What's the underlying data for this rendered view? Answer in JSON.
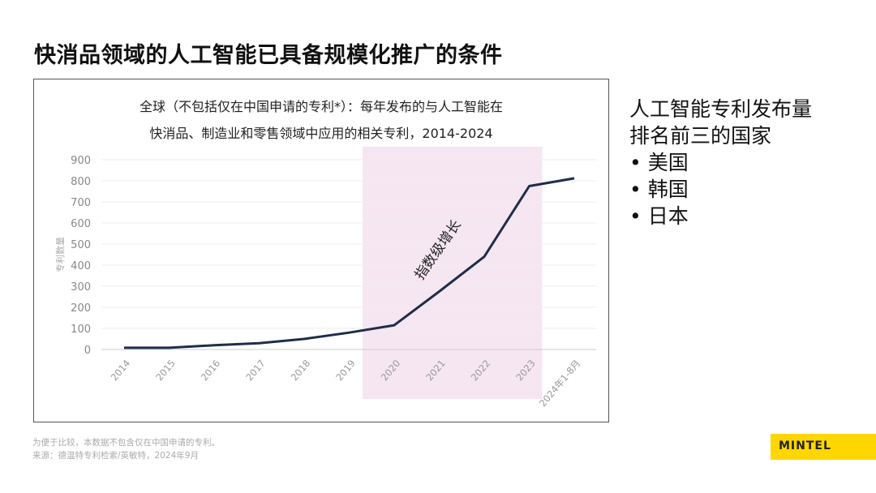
{
  "page_title": "快消品领域的人工智能已具备规模化推广的条件",
  "side_panel": {
    "heading_line1": "人工智能专利发布量",
    "heading_line2": "排名前三的国家",
    "items": [
      "美国",
      "韩国",
      "日本"
    ]
  },
  "footnotes": {
    "note": "为便于比较，本数据不包含仅在中国申请的专利。",
    "source": "来源：德温特专利检索/英敏特，2024年9月"
  },
  "logo": "MINTEL",
  "colors": {
    "line": "#1f2d4a",
    "highlight": "#f5e6f1",
    "logo_bg": "#ffd600"
  },
  "chart_data": {
    "type": "line",
    "title_line1": "全球（不包括仅在中国申请的专利*）：每年发布的与人工智能在",
    "title_line2": "快消品、制造业和零售领域中应用的相关专利，2014-2024",
    "ylabel": "专利数量",
    "xlabel": "",
    "categories": [
      "2014",
      "2015",
      "2016",
      "2017",
      "2018",
      "2019",
      "2020",
      "2021",
      "2022",
      "2023",
      "2024年1-8月"
    ],
    "values": [
      8,
      8,
      20,
      30,
      50,
      80,
      115,
      275,
      440,
      775,
      812
    ],
    "ylim": [
      0,
      900
    ],
    "yticks": [
      0,
      100,
      200,
      300,
      400,
      500,
      600,
      700,
      800,
      900
    ],
    "grid": true,
    "highlight_range": [
      "2020",
      "2023"
    ],
    "annotation": "指数级增长"
  }
}
